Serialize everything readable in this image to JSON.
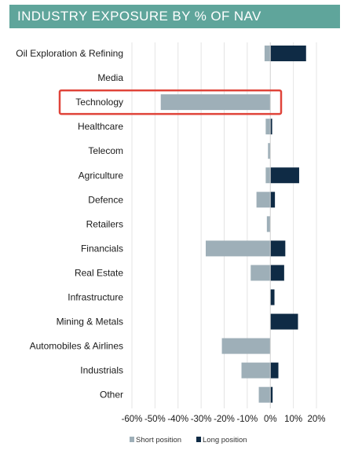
{
  "header": {
    "title": "INDUSTRY EXPOSURE BY % OF NAV"
  },
  "chart_data": {
    "type": "bar",
    "orientation": "horizontal",
    "title": "INDUSTRY EXPOSURE BY % OF NAV",
    "categories": [
      "Oil Exploration & Refining",
      "Media",
      "Technology",
      "Healthcare",
      "Telecom",
      "Agriculture",
      "Defence",
      "Retailers",
      "Financials",
      "Real Estate",
      "Infrastructure",
      "Mining & Metals",
      "Automobiles & Airlines",
      "Industrials",
      "Other"
    ],
    "series": [
      {
        "name": "Short position",
        "color": "#9eafb8",
        "values": [
          -2.5,
          0,
          -47.5,
          -2,
          -1,
          -2,
          -6,
          -1.5,
          -28,
          -8.5,
          0,
          0,
          -21,
          -12.5,
          -5
        ]
      },
      {
        "name": "Long position",
        "color": "#0f2b45",
        "values": [
          15.5,
          0,
          0,
          0.8,
          0,
          12.5,
          2,
          0,
          6.5,
          6,
          1.8,
          12,
          0,
          3.5,
          1
        ]
      }
    ],
    "xlim": [
      -60,
      20
    ],
    "xticks": [
      "-60%",
      "-50%",
      "-40%",
      "-30%",
      "-20%",
      "-10%",
      "0%",
      "10%",
      "20%"
    ],
    "xtick_values": [
      -60,
      -50,
      -40,
      -30,
      -20,
      -10,
      0,
      10,
      20
    ],
    "grid": "vertical",
    "legend": "bottom",
    "highlight": {
      "category": "Technology",
      "color": "#e0443a"
    }
  }
}
